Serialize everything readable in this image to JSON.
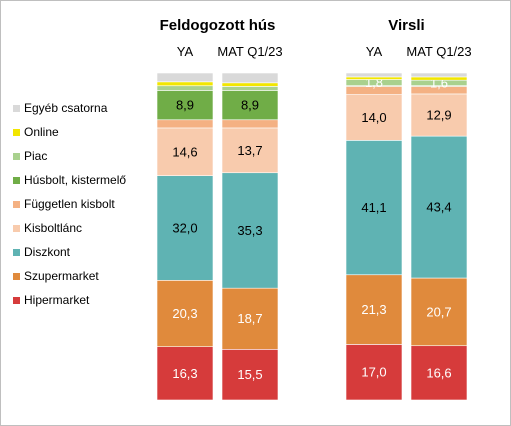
{
  "chart_data": {
    "type": "bar",
    "stacked": true,
    "legend": {
      "placement": "left",
      "items": [
        {
          "name": "Egyéb csatorna",
          "color": "#d9d9d9"
        },
        {
          "name": "Online",
          "color": "#f2e600"
        },
        {
          "name": "Piac",
          "color": "#a9d18e"
        },
        {
          "name": "Húsbolt, kistermelő",
          "color": "#70ad47"
        },
        {
          "name": "Független kisbolt",
          "color": "#f4b183"
        },
        {
          "name": "Kisboltlánc",
          "color": "#f8cbad"
        },
        {
          "name": "Diszkont",
          "color": "#5fb3b3"
        },
        {
          "name": "Szupermarket",
          "color": "#e08a3c"
        },
        {
          "name": "Hipermarket",
          "color": "#d63b3b"
        }
      ]
    },
    "groups": [
      {
        "title": "Feldogozott hús",
        "bars": [
          {
            "label": "YA",
            "segments": [
              {
                "series": "Hipermarket",
                "value": 16.3,
                "label": "16,3"
              },
              {
                "series": "Szupermarket",
                "value": 20.3,
                "label": "20,3"
              },
              {
                "series": "Diszkont",
                "value": 32.0,
                "label": "32,0"
              },
              {
                "series": "Kisboltlánc",
                "value": 14.6,
                "label": "14,6"
              },
              {
                "series": "Független kisbolt",
                "value": 2.5,
                "label": ""
              },
              {
                "series": "Húsbolt, kistermelő",
                "value": 8.9,
                "label": "8,9"
              },
              {
                "series": "Piac",
                "value": 1.5,
                "label": ""
              },
              {
                "series": "Online",
                "value": 1.2,
                "label": ""
              },
              {
                "series": "Egyéb csatorna",
                "value": 2.7,
                "label": ""
              }
            ]
          },
          {
            "label": "MAT Q1/23",
            "segments": [
              {
                "series": "Hipermarket",
                "value": 15.5,
                "label": "15,5"
              },
              {
                "series": "Szupermarket",
                "value": 18.7,
                "label": "18,7"
              },
              {
                "series": "Diszkont",
                "value": 35.3,
                "label": "35,3"
              },
              {
                "series": "Kisboltlánc",
                "value": 13.7,
                "label": "13,7"
              },
              {
                "series": "Független kisbolt",
                "value": 2.5,
                "label": ""
              },
              {
                "series": "Húsbolt, kistermelő",
                "value": 8.9,
                "label": "8,9"
              },
              {
                "series": "Piac",
                "value": 1.3,
                "label": ""
              },
              {
                "series": "Online",
                "value": 1.1,
                "label": ""
              },
              {
                "series": "Egyéb csatorna",
                "value": 3.0,
                "label": ""
              }
            ]
          }
        ]
      },
      {
        "title": "Virsli",
        "bars": [
          {
            "label": "YA",
            "segments": [
              {
                "series": "Hipermarket",
                "value": 17.0,
                "label": "17,0"
              },
              {
                "series": "Szupermarket",
                "value": 21.3,
                "label": "21,3"
              },
              {
                "series": "Diszkont",
                "value": 41.1,
                "label": "41,1"
              },
              {
                "series": "Kisboltlánc",
                "value": 14.0,
                "label": "14,0"
              },
              {
                "series": "Független kisbolt",
                "value": 2.5,
                "label": ""
              },
              {
                "series": "Húsbolt, kistermelő",
                "value": 0.3,
                "label": ""
              },
              {
                "series": "Piac",
                "value": 1.8,
                "label": "1,8"
              },
              {
                "series": "Online",
                "value": 0.8,
                "label": ""
              },
              {
                "series": "Egyéb csatorna",
                "value": 1.2,
                "label": ""
              }
            ]
          },
          {
            "label": "MAT Q1/23",
            "segments": [
              {
                "series": "Hipermarket",
                "value": 16.6,
                "label": "16,6"
              },
              {
                "series": "Szupermarket",
                "value": 20.7,
                "label": "20,7"
              },
              {
                "series": "Diszkont",
                "value": 43.4,
                "label": "43,4"
              },
              {
                "series": "Kisboltlánc",
                "value": 12.9,
                "label": "12,9"
              },
              {
                "series": "Független kisbolt",
                "value": 2.3,
                "label": ""
              },
              {
                "series": "Húsbolt, kistermelő",
                "value": 0.3,
                "label": ""
              },
              {
                "series": "Piac",
                "value": 1.6,
                "label": "1,6"
              },
              {
                "series": "Online",
                "value": 1.0,
                "label": ""
              },
              {
                "series": "Egyéb csatorna",
                "value": 1.2,
                "label": ""
              }
            ]
          }
        ]
      }
    ]
  }
}
